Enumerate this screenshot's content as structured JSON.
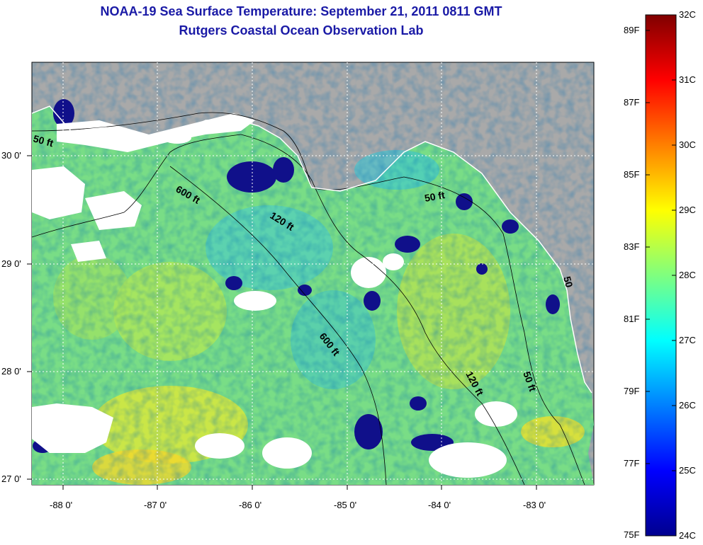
{
  "title": "NOAA-19 Sea Surface Temperature:  September 21, 2011 0811 GMT",
  "subtitle": "Rutgers Coastal Ocean Observation Lab",
  "map": {
    "longitude_ticks": [
      "-88 0'",
      "-87 0'",
      "-86 0'",
      "-85 0'",
      "-84 0'",
      "-83 0'"
    ],
    "latitude_ticks": [
      "30 0'",
      "29 0'",
      "28 0'",
      "27 0'"
    ],
    "contour_labels": [
      "50 ft",
      "600 ft",
      "120 ft",
      "50 ft",
      "600 ft",
      "120 ft",
      "50 ft",
      "50"
    ],
    "colors": {
      "land": "#a9a9a9",
      "cloud": "#ffffff",
      "ocean_base": "#7fe07a"
    }
  },
  "colorbar": {
    "celsius_labels": [
      "32C",
      "31C",
      "30C",
      "29C",
      "28C",
      "27C",
      "26C",
      "25C",
      "24C"
    ],
    "fahrenheit_labels": [
      "89F",
      "87F",
      "85F",
      "83F",
      "81F",
      "79F",
      "77F",
      "75F"
    ],
    "range_celsius": [
      24,
      32
    ],
    "colormap": "jet"
  }
}
